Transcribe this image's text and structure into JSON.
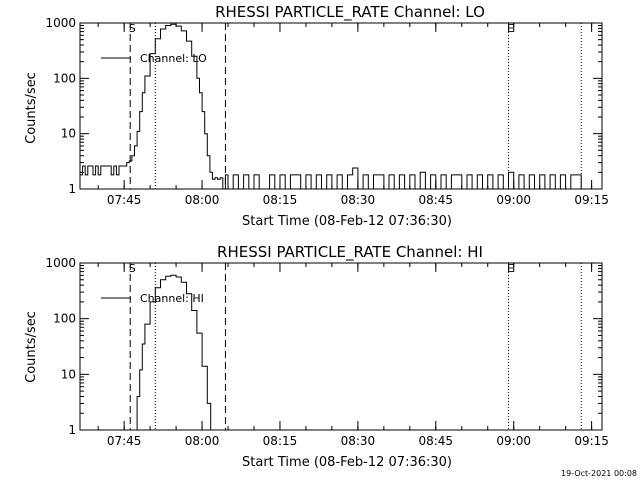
{
  "footer": {
    "timestamp": "19-Oct-2021 00:08"
  },
  "chart_data": [
    {
      "type": "line",
      "title": "RHESSI PARTICLE_RATE Channel: LO",
      "xlabel": "Start Time (08-Feb-12 07:36:30)",
      "ylabel": "Counts/sec",
      "yscale": "log",
      "ylim": [
        1,
        1000
      ],
      "xlim": [
        "07:36:30",
        "09:17:00"
      ],
      "xticks": [
        "07:45",
        "08:00",
        "08:15",
        "08:30",
        "08:45",
        "09:00",
        "09:15"
      ],
      "yticks": [
        "1",
        "10",
        "100",
        "1000"
      ],
      "legend": {
        "position": "top-left",
        "entries": [
          "Channel: LO"
        ]
      },
      "markers": [
        {
          "label": "S",
          "time": "07:46:10",
          "style": "dashed"
        },
        {
          "label": "",
          "time": "07:51:00",
          "style": "dotted"
        },
        {
          "label": "",
          "time": "08:04:30",
          "style": "dashed"
        },
        {
          "label": "E",
          "time": "08:59:00",
          "style": "dotted"
        },
        {
          "label": "",
          "time": "09:13:00",
          "style": "dotted"
        }
      ],
      "series": [
        {
          "name": "Channel: LO",
          "points": [
            [
              "07:36:30",
              1.8
            ],
            [
              "07:37:00",
              2.6
            ],
            [
              "07:37:30",
              1.8
            ],
            [
              "07:38:00",
              2.6
            ],
            [
              "07:38:30",
              2.6
            ],
            [
              "07:39:00",
              1.8
            ],
            [
              "07:39:30",
              2.6
            ],
            [
              "07:40:00",
              1.8
            ],
            [
              "07:40:30",
              2.6
            ],
            [
              "07:41:00",
              2.6
            ],
            [
              "07:41:30",
              2.6
            ],
            [
              "07:42:00",
              2.6
            ],
            [
              "07:42:30",
              1.8
            ],
            [
              "07:43:00",
              2.6
            ],
            [
              "07:43:30",
              1.8
            ],
            [
              "07:44:00",
              2.6
            ],
            [
              "07:44:30",
              2.6
            ],
            [
              "07:45:00",
              2.6
            ],
            [
              "07:45:30",
              3.0
            ],
            [
              "07:46:00",
              3.2
            ],
            [
              "07:46:30",
              4.0
            ],
            [
              "07:47:00",
              6.0
            ],
            [
              "07:47:30",
              11
            ],
            [
              "07:48:00",
              25
            ],
            [
              "07:48:30",
              55
            ],
            [
              "07:49:00",
              110
            ],
            [
              "07:50:00",
              280
            ],
            [
              "07:51:00",
              520
            ],
            [
              "07:52:00",
              780
            ],
            [
              "07:53:00",
              900
            ],
            [
              "07:54:00",
              950
            ],
            [
              "07:55:00",
              880
            ],
            [
              "07:56:00",
              720
            ],
            [
              "07:57:00",
              470
            ],
            [
              "07:58:00",
              250
            ],
            [
              "07:59:00",
              100
            ],
            [
              "07:59:30",
              55
            ],
            [
              "08:00:00",
              25
            ],
            [
              "08:00:30",
              10
            ],
            [
              "08:01:00",
              4
            ],
            [
              "08:01:30",
              2.0
            ],
            [
              "08:02:00",
              1.5
            ],
            [
              "08:02:30",
              1.6
            ],
            [
              "08:03:00",
              1.5
            ],
            [
              "08:03:30",
              1.6
            ],
            [
              "08:04:00",
              1.0
            ],
            [
              "08:04:30",
              1.8
            ],
            [
              "08:05:00",
              1.0
            ],
            [
              "08:06:00",
              1.8
            ],
            [
              "08:07:00",
              1.0
            ],
            [
              "08:08:00",
              1.8
            ],
            [
              "08:09:00",
              1.0
            ],
            [
              "08:10:00",
              1.8
            ],
            [
              "08:11:00",
              1.0
            ],
            [
              "08:12:00",
              1.0
            ],
            [
              "08:13:00",
              1.8
            ],
            [
              "08:14:00",
              1.0
            ],
            [
              "08:15:00",
              1.8
            ],
            [
              "08:16:00",
              1.0
            ],
            [
              "08:17:00",
              1.8
            ],
            [
              "08:18:00",
              1.8
            ],
            [
              "08:19:00",
              1.0
            ],
            [
              "08:20:00",
              1.8
            ],
            [
              "08:21:00",
              1.0
            ],
            [
              "08:22:00",
              1.8
            ],
            [
              "08:23:00",
              1.0
            ],
            [
              "08:24:00",
              1.8
            ],
            [
              "08:25:00",
              1.0
            ],
            [
              "08:26:00",
              1.8
            ],
            [
              "08:27:00",
              1.0
            ],
            [
              "08:28:00",
              1.8
            ],
            [
              "08:29:00",
              2.4
            ],
            [
              "08:30:00",
              1.0
            ],
            [
              "08:31:00",
              1.8
            ],
            [
              "08:32:00",
              1.0
            ],
            [
              "08:33:00",
              1.8
            ],
            [
              "08:34:00",
              1.8
            ],
            [
              "08:35:00",
              1.0
            ],
            [
              "08:36:00",
              1.8
            ],
            [
              "08:37:00",
              1.0
            ],
            [
              "08:38:00",
              1.8
            ],
            [
              "08:39:00",
              1.0
            ],
            [
              "08:40:00",
              1.8
            ],
            [
              "08:41:00",
              1.0
            ],
            [
              "08:42:00",
              2.0
            ],
            [
              "08:43:00",
              1.0
            ],
            [
              "08:44:00",
              1.8
            ],
            [
              "08:45:00",
              1.0
            ],
            [
              "08:46:00",
              1.8
            ],
            [
              "08:47:00",
              1.0
            ],
            [
              "08:48:00",
              1.8
            ],
            [
              "08:49:00",
              1.8
            ],
            [
              "08:50:00",
              1.0
            ],
            [
              "08:51:00",
              1.8
            ],
            [
              "08:52:00",
              1.0
            ],
            [
              "08:53:00",
              1.8
            ],
            [
              "08:54:00",
              1.0
            ],
            [
              "08:55:00",
              1.8
            ],
            [
              "08:56:00",
              1.0
            ],
            [
              "08:57:00",
              1.8
            ],
            [
              "08:58:00",
              1.0
            ],
            [
              "08:59:00",
              2.0
            ],
            [
              "09:00:00",
              1.0
            ],
            [
              "09:01:00",
              1.8
            ],
            [
              "09:02:00",
              1.0
            ],
            [
              "09:03:00",
              1.8
            ],
            [
              "09:04:00",
              1.0
            ],
            [
              "09:05:00",
              1.8
            ],
            [
              "09:06:00",
              1.0
            ],
            [
              "09:07:00",
              1.8
            ],
            [
              "09:08:00",
              1.0
            ],
            [
              "09:09:00",
              1.8
            ],
            [
              "09:10:00",
              1.0
            ],
            [
              "09:11:00",
              1.8
            ],
            [
              "09:12:00",
              1.8
            ],
            [
              "09:13:00",
              1.0
            ]
          ]
        }
      ]
    },
    {
      "type": "line",
      "title": "RHESSI PARTICLE_RATE Channel: HI",
      "xlabel": "Start Time (08-Feb-12 07:36:30)",
      "ylabel": "Counts/sec",
      "yscale": "log",
      "ylim": [
        1,
        1000
      ],
      "xlim": [
        "07:36:30",
        "09:17:00"
      ],
      "xticks": [
        "07:45",
        "08:00",
        "08:15",
        "08:30",
        "08:45",
        "09:00",
        "09:15"
      ],
      "yticks": [
        "1",
        "10",
        "100",
        "1000"
      ],
      "legend": {
        "position": "top-left",
        "entries": [
          "Channel: HI"
        ]
      },
      "markers": [
        {
          "label": "S",
          "time": "07:46:10",
          "style": "dashed"
        },
        {
          "label": "",
          "time": "07:51:00",
          "style": "dotted"
        },
        {
          "label": "",
          "time": "08:04:30",
          "style": "dashed"
        },
        {
          "label": "E",
          "time": "08:59:00",
          "style": "dotted"
        },
        {
          "label": "",
          "time": "09:13:00",
          "style": "dotted"
        }
      ],
      "series": [
        {
          "name": "Channel: HI",
          "points": [
            [
              "07:46:50",
              1.0
            ],
            [
              "07:47:30",
              4
            ],
            [
              "07:48:00",
              12
            ],
            [
              "07:48:30",
              35
            ],
            [
              "07:49:00",
              80
            ],
            [
              "07:50:00",
              200
            ],
            [
              "07:51:00",
              360
            ],
            [
              "07:52:00",
              500
            ],
            [
              "07:53:00",
              580
            ],
            [
              "07:54:00",
              600
            ],
            [
              "07:55:00",
              560
            ],
            [
              "07:56:00",
              450
            ],
            [
              "07:57:00",
              280
            ],
            [
              "07:58:00",
              140
            ],
            [
              "07:59:00",
              55
            ],
            [
              "08:00:00",
              14
            ],
            [
              "08:01:00",
              3
            ],
            [
              "08:01:40",
              1.0
            ]
          ]
        }
      ]
    }
  ]
}
